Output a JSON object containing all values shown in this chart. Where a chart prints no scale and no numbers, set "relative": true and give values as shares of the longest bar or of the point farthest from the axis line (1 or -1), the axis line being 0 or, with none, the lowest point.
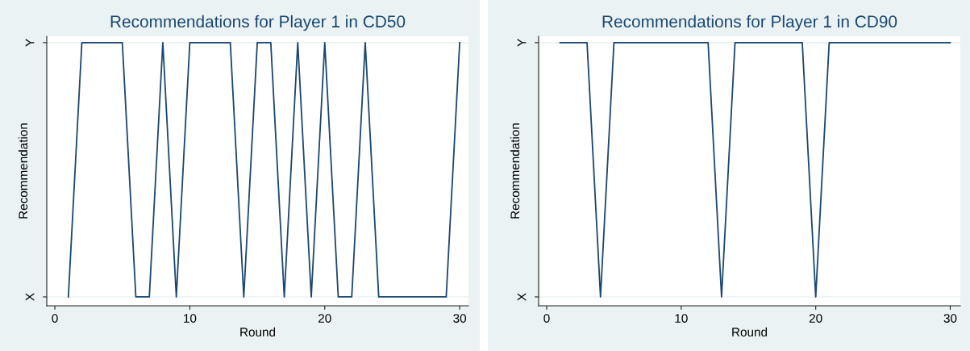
{
  "chart_data": [
    {
      "type": "line",
      "title": "Recommendations for Player 1 in CD50",
      "xlabel": "Round",
      "ylabel": "Recommendation",
      "relative": true,
      "x": [
        1,
        2,
        3,
        4,
        5,
        6,
        7,
        8,
        9,
        10,
        11,
        12,
        13,
        14,
        15,
        16,
        17,
        18,
        19,
        20,
        21,
        22,
        23,
        24,
        25,
        26,
        27,
        28,
        29,
        30
      ],
      "series": [
        {
          "color": "#1a476f",
          "values": [
            0,
            1,
            1,
            1,
            1,
            0,
            0,
            1,
            0,
            1,
            1,
            1,
            1,
            0,
            1,
            1,
            0,
            1,
            0,
            1,
            0,
            0,
            1,
            0,
            0,
            0,
            0,
            0,
            0,
            1
          ]
        }
      ],
      "xlim": [
        -0.6,
        30.65
      ],
      "xticks": [
        0,
        10,
        20,
        30
      ],
      "annotations": [
        "X",
        "Y"
      ],
      "grid": "y"
    },
    {
      "type": "line",
      "title": "Recommendations for Player 1 in CD90",
      "xlabel": "Round",
      "ylabel": "Recommendation",
      "relative": true,
      "x": [
        1,
        2,
        3,
        4,
        5,
        6,
        7,
        8,
        9,
        10,
        11,
        12,
        13,
        14,
        15,
        16,
        17,
        18,
        19,
        20,
        21,
        22,
        23,
        24,
        25,
        26,
        27,
        28,
        29,
        30
      ],
      "series": [
        {
          "color": "#1a476f",
          "values": [
            1,
            1,
            1,
            0,
            1,
            1,
            1,
            1,
            1,
            1,
            1,
            1,
            0,
            1,
            1,
            1,
            1,
            1,
            1,
            0,
            1,
            1,
            1,
            1,
            1,
            1,
            1,
            1,
            1,
            1
          ]
        }
      ],
      "xlim": [
        -0.6,
        30.75
      ],
      "xticks": [
        0,
        10,
        20,
        30
      ],
      "annotations": [
        "X",
        "Y"
      ],
      "grid": "y"
    }
  ]
}
